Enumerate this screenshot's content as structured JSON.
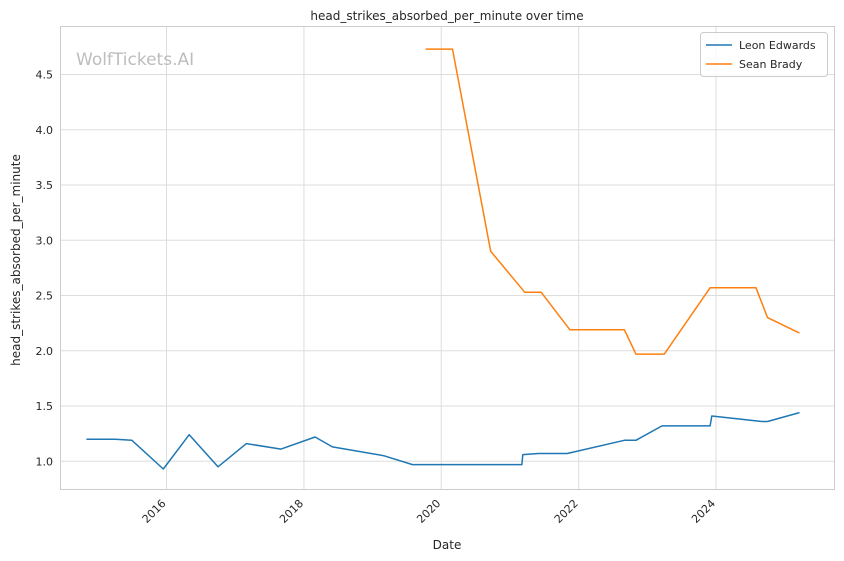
{
  "watermark": "WolfTickets.AI",
  "chart_data": {
    "type": "line",
    "title": "head_strikes_absorbed_per_minute over time",
    "xlabel": "Date",
    "ylabel": "head_strikes_absorbed_per_minute",
    "xlim": [
      "2014-06-19",
      "2025-09-25"
    ],
    "ylim": [
      0.74,
      4.93
    ],
    "x_ticks": [
      "2016",
      "2018",
      "2020",
      "2022",
      "2024"
    ],
    "y_ticks": [
      "1.0",
      "1.5",
      "2.0",
      "2.5",
      "3.0",
      "3.5",
      "4.0",
      "4.5"
    ],
    "grid": true,
    "legend_position": "top-right",
    "series": [
      {
        "name": "Leon Edwards",
        "color": "#1f77b4",
        "points": [
          [
            "2014-11-01",
            1.2
          ],
          [
            "2015-04-01",
            1.2
          ],
          [
            "2015-07-01",
            1.19
          ],
          [
            "2015-12-15",
            0.93
          ],
          [
            "2016-05-01",
            1.24
          ],
          [
            "2016-10-01",
            0.95
          ],
          [
            "2017-03-01",
            1.16
          ],
          [
            "2017-09-01",
            1.11
          ],
          [
            "2018-03-01",
            1.22
          ],
          [
            "2018-06-01",
            1.13
          ],
          [
            "2019-03-01",
            1.05
          ],
          [
            "2019-08-01",
            0.97
          ],
          [
            "2021-03-05",
            0.97
          ],
          [
            "2021-03-10",
            1.06
          ],
          [
            "2021-06-01",
            1.07
          ],
          [
            "2021-11-01",
            1.07
          ],
          [
            "2022-09-01",
            1.19
          ],
          [
            "2022-11-01",
            1.19
          ],
          [
            "2023-03-20",
            1.32
          ],
          [
            "2023-12-01",
            1.32
          ],
          [
            "2023-12-10",
            1.41
          ],
          [
            "2024-09-01",
            1.36
          ],
          [
            "2024-10-01",
            1.36
          ],
          [
            "2025-03-20",
            1.44
          ]
        ]
      },
      {
        "name": "Sean Brady",
        "color": "#ff7f0e",
        "points": [
          [
            "2019-10-10",
            4.73
          ],
          [
            "2020-03-01",
            4.73
          ],
          [
            "2020-09-20",
            2.9
          ],
          [
            "2021-03-20",
            2.53
          ],
          [
            "2021-06-15",
            2.53
          ],
          [
            "2021-11-15",
            2.19
          ],
          [
            "2022-09-01",
            2.19
          ],
          [
            "2022-11-01",
            1.97
          ],
          [
            "2023-04-01",
            1.97
          ],
          [
            "2023-12-01",
            2.57
          ],
          [
            "2024-08-01",
            2.57
          ],
          [
            "2024-10-01",
            2.3
          ],
          [
            "2025-03-20",
            2.16
          ]
        ]
      }
    ]
  }
}
